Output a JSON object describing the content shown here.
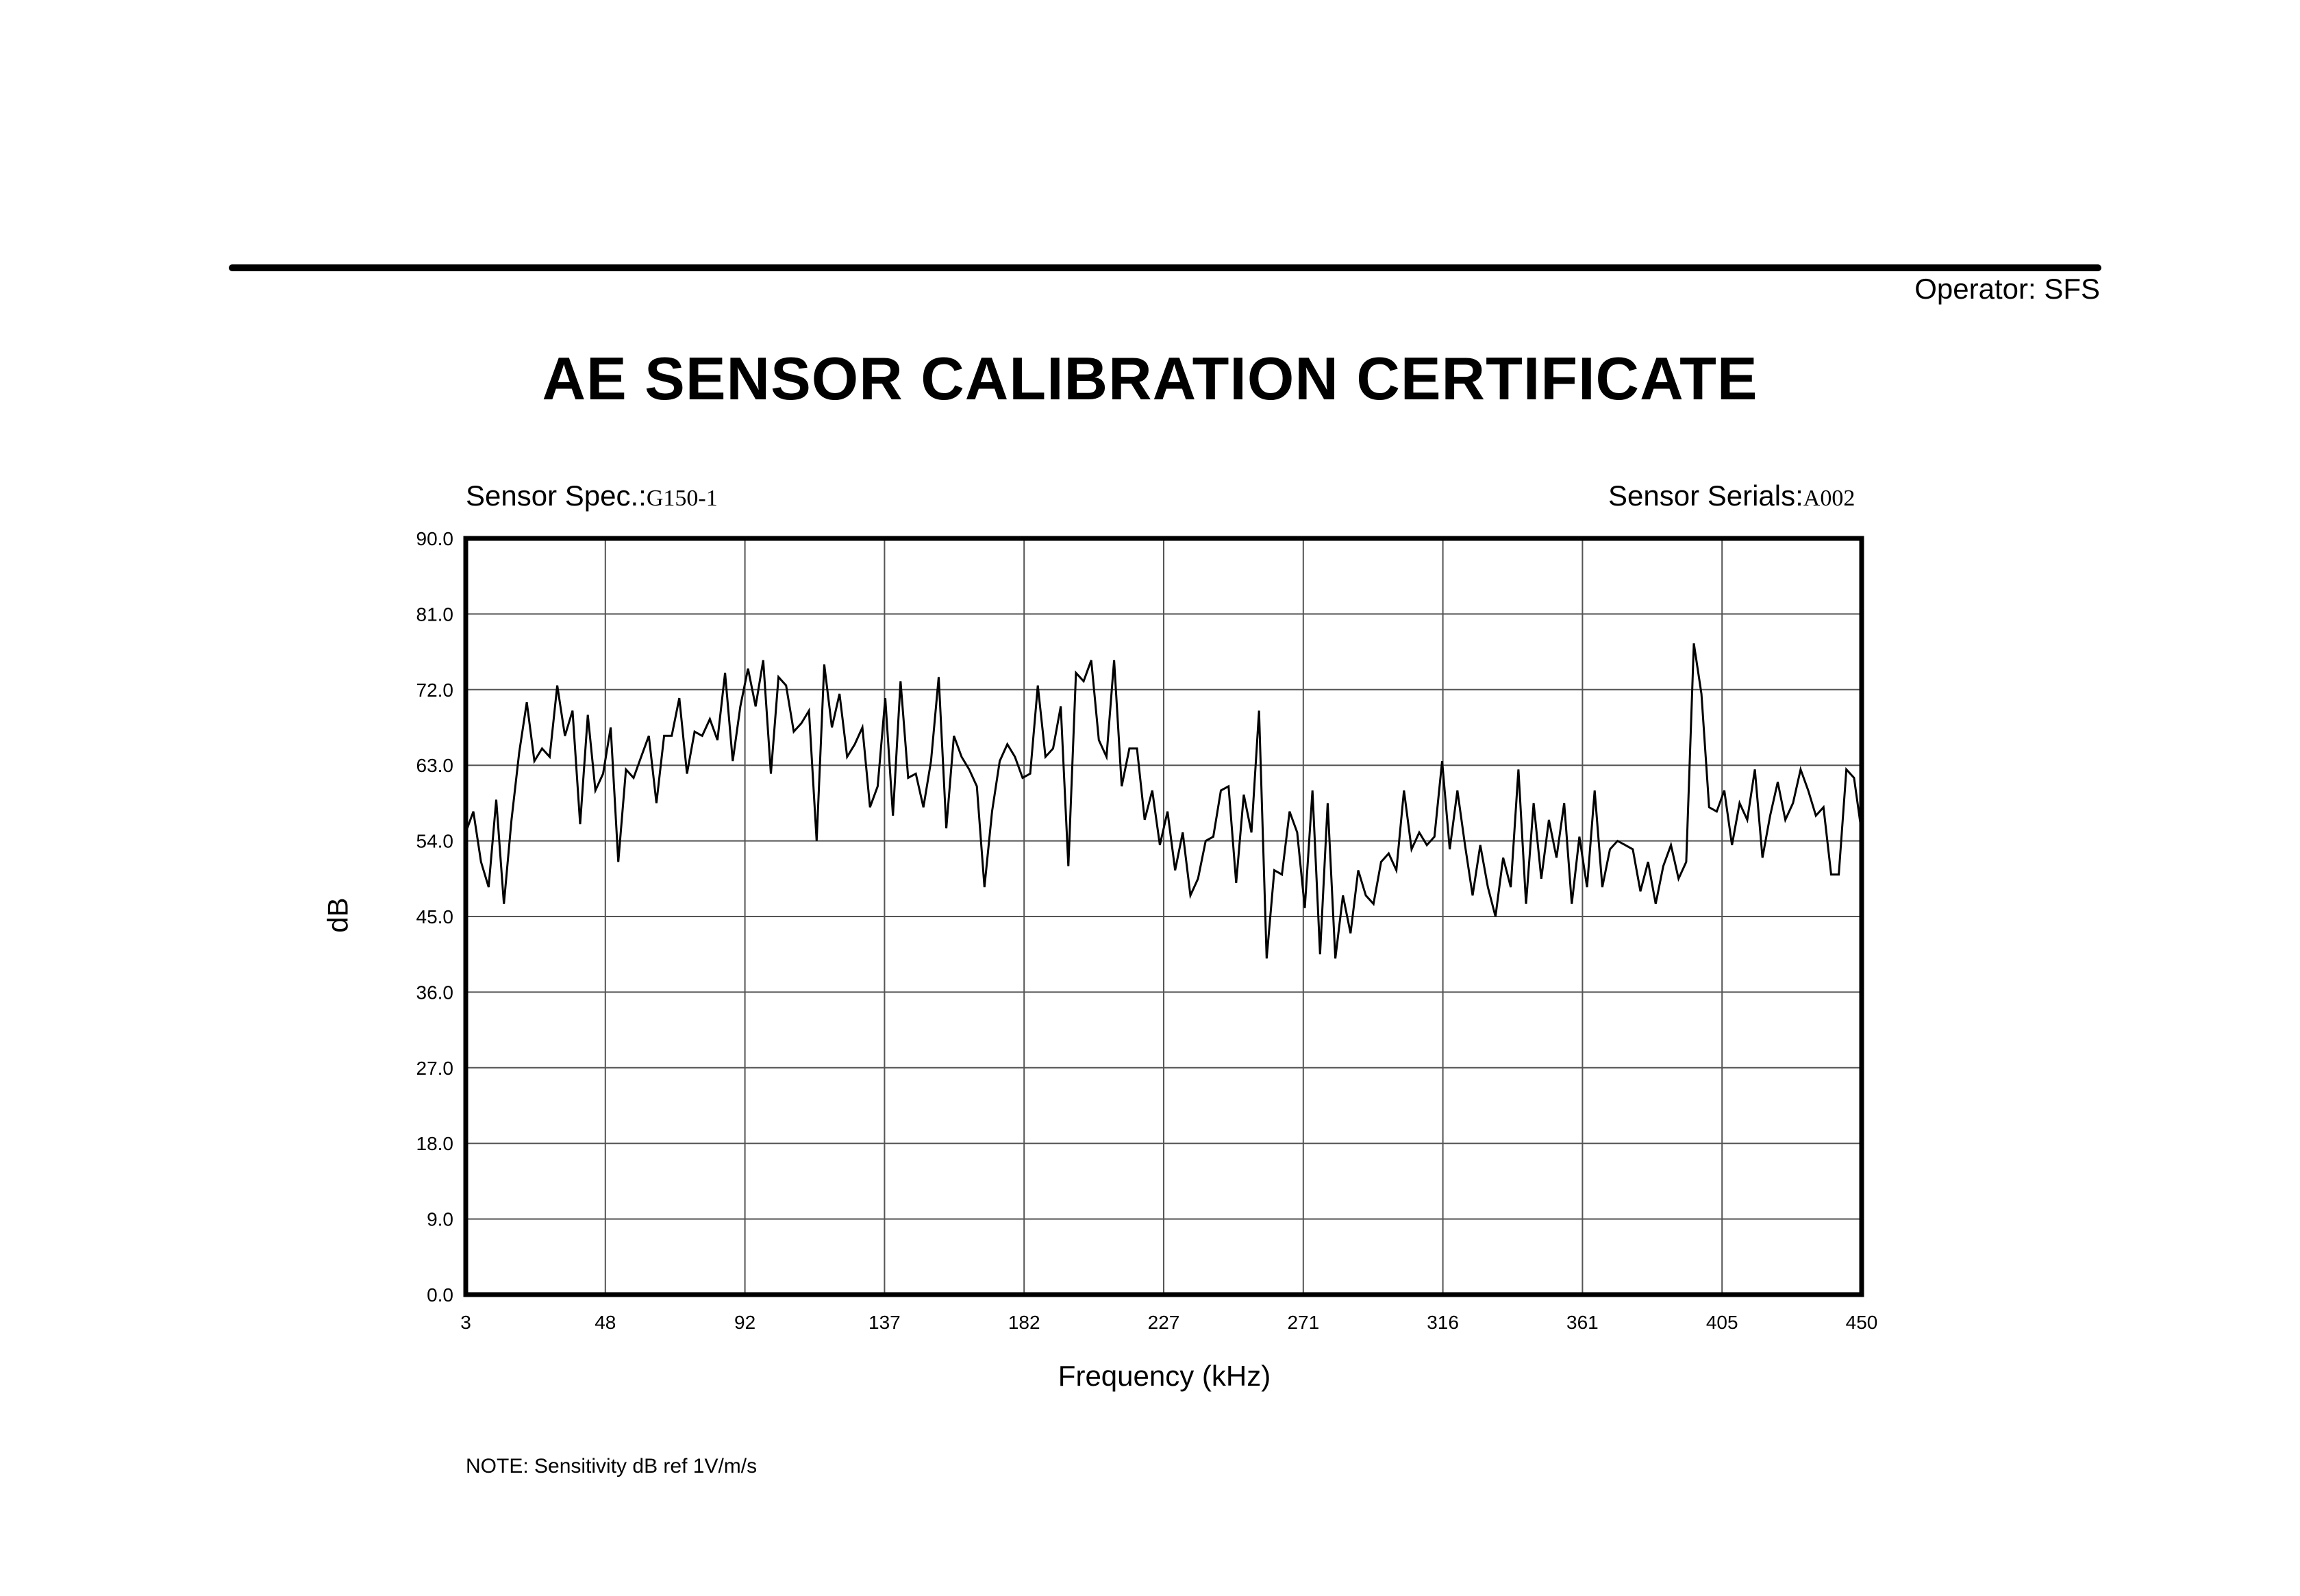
{
  "document": {
    "operator_label": "Operator:",
    "operator_value": "SFS",
    "title": "AE SENSOR CALIBRATION CERTIFICATE",
    "sensor_spec_label": "Sensor Spec.:",
    "sensor_spec_value": "G150-1",
    "sensor_serials_label": "Sensor Serials:",
    "sensor_serials_value": "A002",
    "note": "NOTE:  Sensitivity dB ref 1V/m/s"
  },
  "chart_data": {
    "type": "line",
    "xlabel": "Frequency (kHz)",
    "ylabel": "dB",
    "xlim": [
      3,
      450
    ],
    "ylim": [
      0,
      90
    ],
    "x_ticks": [
      "3",
      "48",
      "92",
      "137",
      "182",
      "227",
      "271",
      "316",
      "361",
      "405",
      "450"
    ],
    "y_ticks": [
      "0.0",
      "9.0",
      "18.0",
      "27.0",
      "36.0",
      "45.0",
      "54.0",
      "63.0",
      "72.0",
      "81.0",
      "90.0"
    ],
    "grid": true,
    "line_color": "#000000",
    "series": [
      {
        "values": [
          55.0,
          57.5,
          51.5,
          48.5,
          58.9,
          46.5,
          56.5,
          64.5,
          70.5,
          63.5,
          65.0,
          64.0,
          72.5,
          66.5,
          69.5,
          56.0,
          69.0,
          60.0,
          62.0,
          67.5,
          51.5,
          62.5,
          61.5,
          64.0,
          66.5,
          58.5,
          66.5,
          66.5,
          71.0,
          62.0,
          67.0,
          66.5,
          68.5,
          66.0,
          74.0,
          63.5,
          70.0,
          74.5,
          70.0,
          75.5,
          62.0,
          73.5,
          72.5,
          67.0,
          68.0,
          69.5,
          54.0,
          75.0,
          67.5,
          71.5,
          64.0,
          65.5,
          67.5,
          58.0,
          60.5,
          71.0,
          57.0,
          73.0,
          61.5,
          62.0,
          58.0,
          63.5,
          73.5,
          55.5,
          66.5,
          64.0,
          62.5,
          60.5,
          48.5,
          57.5,
          63.5,
          65.5,
          64.0,
          61.5,
          62.0,
          72.5,
          64.0,
          65.0,
          70.0,
          51.0,
          74.0,
          73.0,
          75.5,
          66.0,
          64.0,
          75.5,
          60.5,
          65.0,
          65.0,
          56.5,
          60.0,
          53.5,
          57.5,
          50.5,
          55.0,
          47.5,
          49.5,
          54.0,
          54.5,
          60.0,
          60.5,
          49.0,
          59.5,
          55.0,
          69.5,
          40.0,
          50.5,
          50.0,
          57.5,
          55.0,
          46.0,
          60.0,
          40.5,
          58.5,
          40.0,
          47.5,
          43.0,
          50.5,
          47.5,
          46.5,
          51.5,
          52.5,
          50.5,
          60.0,
          53.0,
          55.0,
          53.5,
          54.5,
          63.5,
          53.0,
          60.0,
          53.5,
          47.5,
          53.5,
          48.5,
          45.0,
          52.0,
          48.5,
          62.5,
          46.5,
          58.5,
          49.5,
          56.5,
          52.0,
          58.5,
          46.5,
          54.5,
          48.5,
          60.0,
          48.5,
          53.0,
          54.0,
          53.5,
          53.0,
          48.0,
          51.5,
          46.5,
          51.0,
          53.5,
          49.5,
          51.5,
          77.5,
          71.5,
          58.0,
          57.5,
          60.0,
          53.5,
          58.5,
          56.5,
          62.5,
          52.0,
          57.0,
          61.0,
          56.5,
          58.5,
          62.5,
          60.0,
          57.0,
          58.0,
          50.0,
          50.0,
          62.5,
          61.5,
          55.0
        ]
      }
    ]
  }
}
